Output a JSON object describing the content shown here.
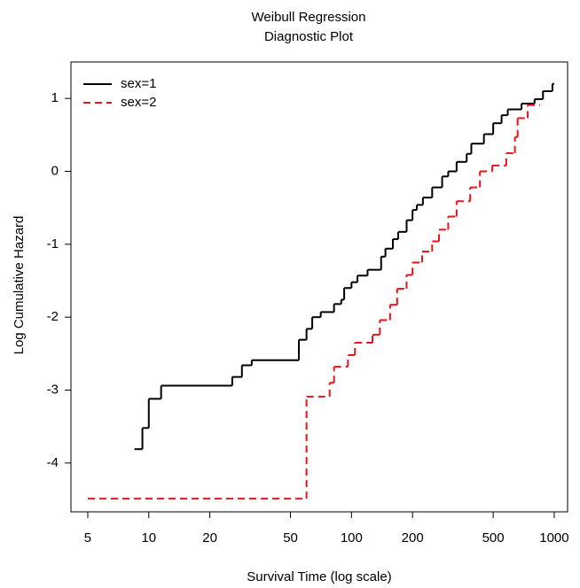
{
  "chart_data": {
    "type": "step",
    "title": "Weibull Regression",
    "subtitle": "Diagnostic Plot",
    "x_label": "Survival Time (log scale)",
    "y_label": "Log Cumulative Hazard",
    "x_scale": "log",
    "xlim": [
      4.13,
      1164
    ],
    "ylim": [
      -4.67,
      1.5
    ],
    "xticks": [
      5,
      10,
      20,
      50,
      100,
      200,
      500,
      1000
    ],
    "yticks": [
      -4,
      -3,
      -2,
      -1,
      0,
      1
    ],
    "grid": false,
    "legend": "top-left",
    "series": [
      {
        "name": "sex=1",
        "color": "#000000",
        "linestyle": "solid",
        "x": [
          8.5,
          9.3,
          10,
          11.5,
          25.8,
          28.8,
          32.2,
          55,
          60,
          64,
          70.5,
          82,
          89,
          92,
          100,
          107,
          120,
          140,
          147,
          160,
          170,
          187,
          200,
          210,
          225,
          250,
          280,
          300,
          330,
          370,
          390,
          450,
          500,
          550,
          590,
          690,
          800,
          880,
          980,
          1000
        ],
        "values": [
          -3.81,
          -3.52,
          -3.12,
          -2.94,
          -2.82,
          -2.66,
          -2.59,
          -2.31,
          -2.16,
          -2.0,
          -1.93,
          -1.82,
          -1.76,
          -1.6,
          -1.52,
          -1.43,
          -1.35,
          -1.17,
          -1.06,
          -0.93,
          -0.83,
          -0.67,
          -0.53,
          -0.46,
          -0.36,
          -0.22,
          -0.07,
          0,
          0.13,
          0.24,
          0.38,
          0.51,
          0.66,
          0.77,
          0.85,
          0.93,
          0.99,
          1.1,
          1.2,
          1.2
        ]
      },
      {
        "name": "sex=2",
        "color": "#e8141c",
        "linestyle": "dashed",
        "x": [
          5,
          60,
          78,
          82,
          96,
          104,
          127,
          138,
          155,
          168,
          187,
          200,
          223,
          250,
          270,
          300,
          330,
          385,
          430,
          495,
          580,
          640,
          660,
          740,
          850
        ],
        "values": [
          -4.49,
          -3.09,
          -2.9,
          -2.68,
          -2.52,
          -2.35,
          -2.24,
          -2.04,
          -1.83,
          -1.61,
          -1.42,
          -1.25,
          -1.1,
          -0.96,
          -0.8,
          -0.62,
          -0.41,
          -0.22,
          0,
          0.08,
          0.25,
          0.47,
          0.73,
          0.91,
          0.91
        ]
      }
    ]
  }
}
